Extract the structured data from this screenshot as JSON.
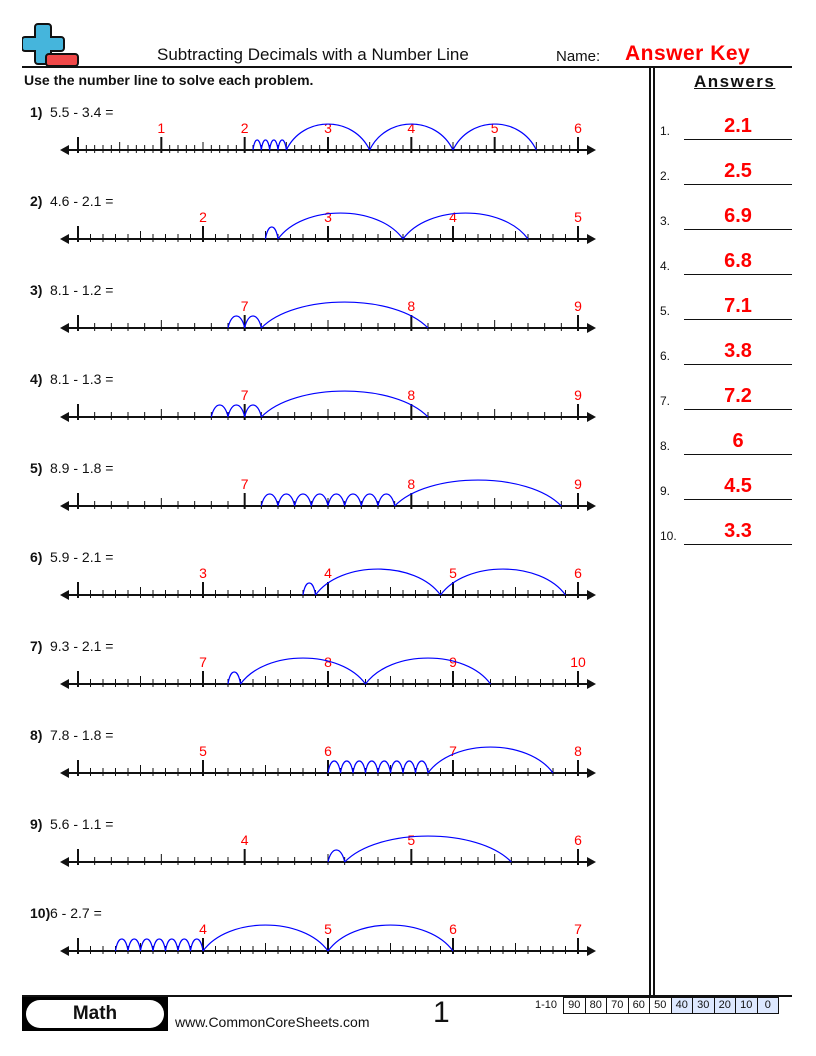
{
  "header": {
    "title": "Subtracting Decimals with a Number Line",
    "name_label": "Name:",
    "name_value": "Answer Key",
    "logo": "plus-minus-logo-icon"
  },
  "instructions": "Use the number line to solve each problem.",
  "answers_title": "Answers",
  "colors": {
    "label_red": "#ff0000",
    "jump_blue": "#0000ff",
    "score_blue": "#dde8ff"
  },
  "problems": [
    {
      "num": "1)",
      "expr": "5.5 - 3.4 =",
      "a": 5.5,
      "b": 3.4,
      "min": 0,
      "max": 6,
      "labels": [
        "1",
        "2",
        "3",
        "4",
        "5",
        "6"
      ]
    },
    {
      "num": "2)",
      "expr": "4.6 - 2.1 =",
      "a": 4.6,
      "b": 2.1,
      "min": 1,
      "max": 5,
      "labels": [
        "2",
        "3",
        "4",
        "5"
      ]
    },
    {
      "num": "3)",
      "expr": "8.1 - 1.2 =",
      "a": 8.1,
      "b": 1.2,
      "min": 6,
      "max": 9,
      "labels": [
        "7",
        "8",
        "9"
      ]
    },
    {
      "num": "4)",
      "expr": "8.1 - 1.3 =",
      "a": 8.1,
      "b": 1.3,
      "min": 6,
      "max": 9,
      "labels": [
        "7",
        "8",
        "9"
      ]
    },
    {
      "num": "5)",
      "expr": "8.9 - 1.8 =",
      "a": 8.9,
      "b": 1.8,
      "min": 6,
      "max": 9,
      "labels": [
        "7",
        "8",
        "9"
      ]
    },
    {
      "num": "6)",
      "expr": "5.9 - 2.1 =",
      "a": 5.9,
      "b": 2.1,
      "min": 2,
      "max": 6,
      "labels": [
        "3",
        "4",
        "5",
        "6"
      ]
    },
    {
      "num": "7)",
      "expr": "9.3 - 2.1 =",
      "a": 9.3,
      "b": 2.1,
      "min": 6,
      "max": 10,
      "labels": [
        "7",
        "8",
        "9",
        "10"
      ]
    },
    {
      "num": "8)",
      "expr": "7.8 - 1.8 =",
      "a": 7.8,
      "b": 1.8,
      "min": 4,
      "max": 8,
      "labels": [
        "5",
        "6",
        "7",
        "8"
      ]
    },
    {
      "num": "9)",
      "expr": "5.6 - 1.1 =",
      "a": 5.6,
      "b": 1.1,
      "min": 3,
      "max": 6,
      "labels": [
        "4",
        "5",
        "6"
      ]
    },
    {
      "num": "10)",
      "expr": "6 - 2.7 =",
      "a": 6,
      "b": 2.7,
      "min": 3,
      "max": 7,
      "labels": [
        "4",
        "5",
        "6",
        "7"
      ]
    }
  ],
  "answers": [
    {
      "num": "1.",
      "value": "2.1"
    },
    {
      "num": "2.",
      "value": "2.5"
    },
    {
      "num": "3.",
      "value": "6.9"
    },
    {
      "num": "4.",
      "value": "6.8"
    },
    {
      "num": "5.",
      "value": "7.1"
    },
    {
      "num": "6.",
      "value": "3.8"
    },
    {
      "num": "7.",
      "value": "7.2"
    },
    {
      "num": "8.",
      "value": "6"
    },
    {
      "num": "9.",
      "value": "4.5"
    },
    {
      "num": "10.",
      "value": "3.3"
    }
  ],
  "footer": {
    "subject": "Math",
    "site": "www.CommonCoreSheets.com",
    "page": "1",
    "score_label": "1-10",
    "scores": [
      "90",
      "80",
      "70",
      "60",
      "50",
      "40",
      "30",
      "20",
      "10",
      "0"
    ]
  }
}
